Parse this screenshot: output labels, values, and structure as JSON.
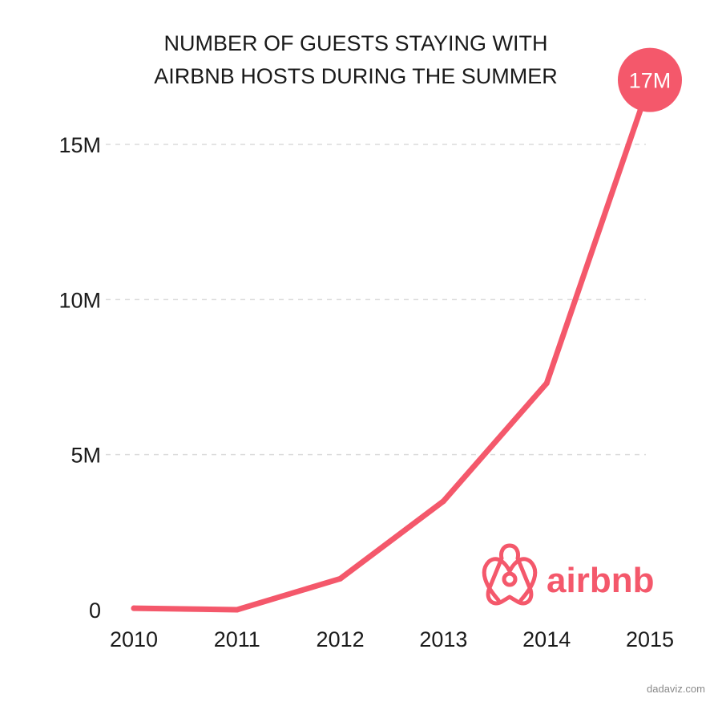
{
  "colors": {
    "accent": "#f4586b",
    "text": "#1a1a1a",
    "grid": "#dcdcdc",
    "source": "#8a8a8a"
  },
  "chart_data": {
    "type": "line",
    "title": "NUMBER OF GUESTS STAYING WITH AIRBNB HOSTS DURING THE SUMMER",
    "title_lines": [
      "NUMBER OF GUESTS STAYING WITH",
      "AIRBNB HOSTS DURING THE SUMMER"
    ],
    "x": [
      2010,
      2011,
      2012,
      2013,
      2014,
      2015
    ],
    "x_tick_labels": [
      "2010",
      "2011",
      "2012",
      "2013",
      "2014",
      "2015"
    ],
    "series": [
      {
        "values": [
          47000,
          0,
          1000000,
          3500000,
          7300000,
          17000000
        ]
      }
    ],
    "y_ticks": [
      0,
      5000000,
      10000000,
      15000000
    ],
    "y_tick_labels": [
      "0",
      "5M",
      "10M",
      "15M"
    ],
    "ylim": [
      0,
      17000000
    ],
    "grid": "horizontal dashed",
    "peak_label": "17M",
    "xlabel": "",
    "ylabel": ""
  },
  "brand": {
    "name": "airbnb",
    "logo_icon": "airbnb-belo-icon"
  },
  "source": "dadaviz.com"
}
